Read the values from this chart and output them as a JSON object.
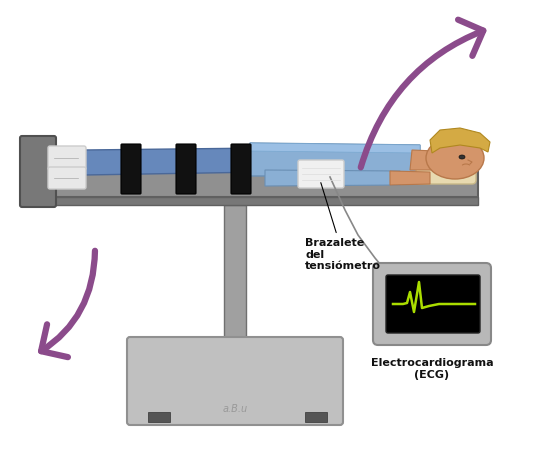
{
  "bg_color": "#ffffff",
  "arrow_color": "#8b4b8b",
  "ecg_bg": "#000000",
  "ecg_line_color": "#aadd00",
  "ecg_monitor_color": "#b8b8b8",
  "ecg_monitor_edge": "#888888",
  "label_brazalete": "Brazalete\ndel\ntensiómetro",
  "label_ecg": "Electrocardiograma\n(ECG)",
  "signature": "a.B.u",
  "table_surface_color": "#909090",
  "table_surface_edge": "#606060",
  "table_under_color": "#777777",
  "pole_color": "#a0a0a0",
  "pole_edge": "#707070",
  "base_color": "#c0c0c0",
  "base_edge": "#909090",
  "footboard_color": "#787878",
  "footboard_edge": "#505050",
  "strap_color": "#111111",
  "pillow_color": "#e8dab0",
  "pillow_edge": "#c8b888",
  "shirt_color": "#8aafd4",
  "shirt_dark": "#6a8fb4",
  "pants_color": "#6688bb",
  "pants_dark": "#4a6899",
  "skin_color": "#d4956a",
  "skin_dark": "#b8784a",
  "hair_color": "#d4aa44",
  "hair_dark": "#b08820",
  "shoe_color": "#e8e8e8",
  "shoe_dark": "#cccccc",
  "cuff_color": "#f0f0f0",
  "cuff_edge": "#cccccc",
  "cable_color": "#888888"
}
